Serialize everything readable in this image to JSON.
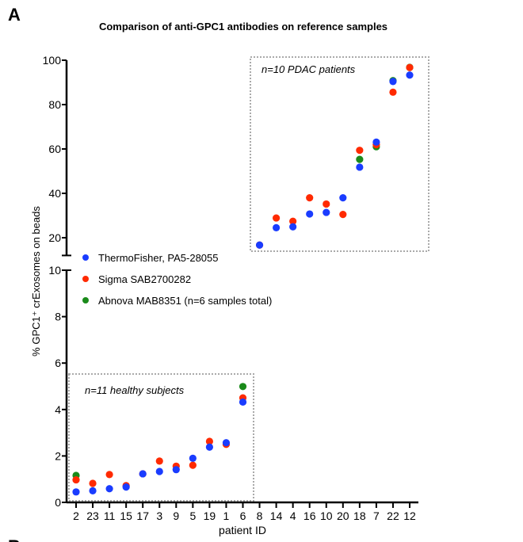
{
  "panel_labels": {
    "a": "A",
    "b": "B"
  },
  "chart_data": {
    "type": "scatter",
    "title": "Comparison of anti-GPC1 antibodies on reference samples",
    "xlabel": "patient ID",
    "ylabel": "% GPC1⁺ crExosomes on beads",
    "categories": [
      "2",
      "23",
      "11",
      "15",
      "17",
      "3",
      "9",
      "5",
      "19",
      "1",
      "6",
      "8",
      "14",
      "4",
      "16",
      "10",
      "20",
      "18",
      "7",
      "22",
      "12"
    ],
    "y_axis": {
      "broken": true,
      "lower_segment": {
        "range": [
          0,
          10
        ],
        "ticks": [
          0,
          2,
          4,
          6,
          8,
          10
        ]
      },
      "upper_segment": {
        "range": [
          12,
          100
        ],
        "ticks": [
          20,
          40,
          60,
          80,
          100
        ]
      }
    },
    "grid": false,
    "legend_position": "middle-left",
    "series": [
      {
        "name": "ThermoFisher, PA5-28055",
        "color": "#1a3cff",
        "values": [
          0.45,
          0.5,
          0.59,
          0.66,
          1.23,
          1.33,
          1.41,
          1.9,
          2.38,
          2.57,
          4.32,
          16.7,
          24.5,
          24.9,
          30.7,
          31.4,
          38.0,
          51.8,
          63.1,
          90.4,
          93.3
        ]
      },
      {
        "name": "Sigma SAB2700282",
        "color": "#ff2a00",
        "values": [
          0.97,
          0.82,
          1.2,
          0.72,
          1.23,
          1.78,
          1.56,
          1.6,
          2.63,
          2.5,
          4.5,
          16.7,
          28.9,
          27.4,
          38.0,
          35.2,
          30.5,
          59.4,
          61.9,
          85.6,
          96.7
        ]
      },
      {
        "name": "Abnova MAB8351 (n=6 samples total)",
        "color": "#1a8a1a",
        "values": [
          1.16,
          null,
          null,
          null,
          null,
          null,
          null,
          null,
          null,
          null,
          4.99,
          null,
          null,
          null,
          null,
          null,
          null,
          55.3,
          61.0,
          90.8,
          96.8
        ]
      }
    ],
    "annotations": [
      {
        "text": "n=11 healthy subjects",
        "group": [
          "2",
          "23",
          "11",
          "15",
          "17",
          "3",
          "9",
          "5",
          "19",
          "1",
          "6"
        ]
      },
      {
        "text": "n=10 PDAC patients",
        "group": [
          "8",
          "14",
          "4",
          "16",
          "10",
          "20",
          "18",
          "7",
          "22",
          "12"
        ]
      }
    ]
  }
}
